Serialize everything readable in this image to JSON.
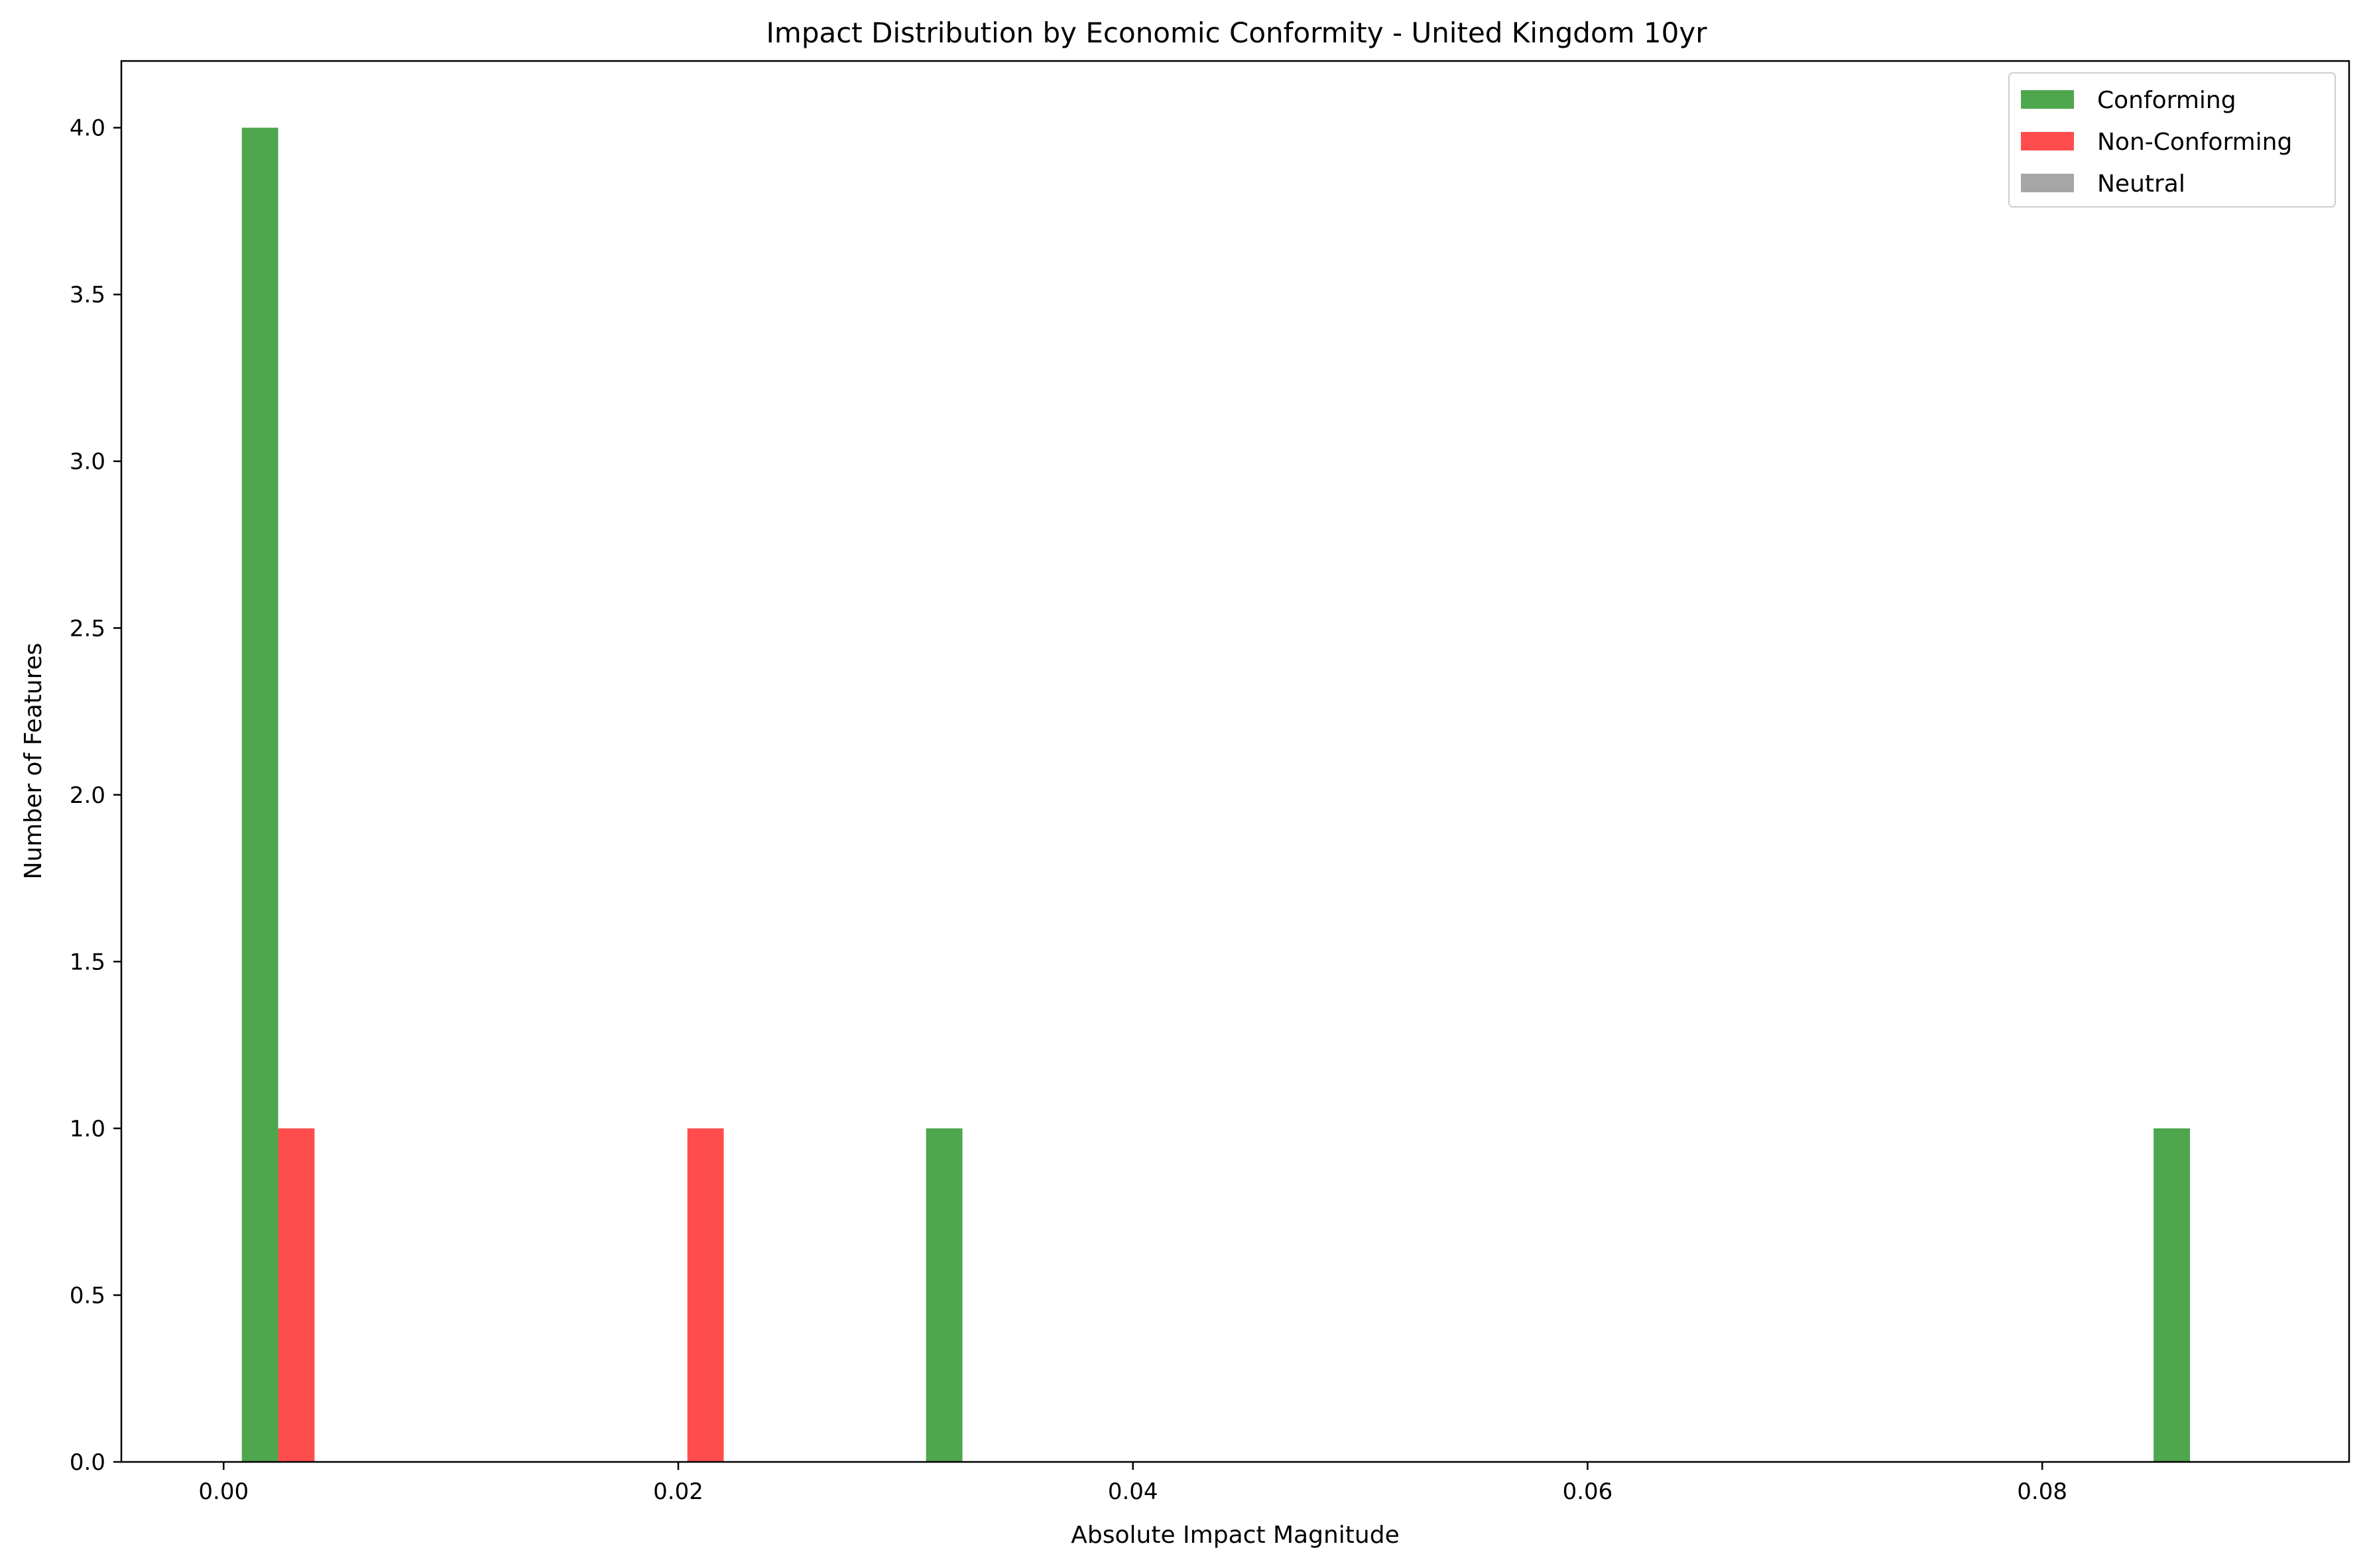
{
  "chart_data": {
    "type": "bar",
    "title": "Impact Distribution by Economic Conformity - United Kingdom 10yr",
    "xlabel": "Absolute Impact Magnitude",
    "ylabel": "Number of Features",
    "xlim": [
      -0.0045,
      0.0935
    ],
    "ylim": [
      0,
      4.2
    ],
    "xticks": [
      "0.00",
      "0.02",
      "0.04",
      "0.06",
      "0.08"
    ],
    "yticks": [
      "0.0",
      "0.5",
      "1.0",
      "1.5",
      "2.0",
      "2.5",
      "3.0",
      "3.5",
      "4.0"
    ],
    "grid": false,
    "legend_position": "top-right",
    "series": [
      {
        "name": "Conforming",
        "color": "#4ea64d",
        "bars": [
          {
            "x0": 0.0008,
            "x1": 0.0024,
            "count": 4
          },
          {
            "x0": 0.0309,
            "x1": 0.0325,
            "count": 1
          },
          {
            "x0": 0.0849,
            "x1": 0.0865,
            "count": 1
          }
        ]
      },
      {
        "name": "Non-Conforming",
        "color": "#ff4d4d",
        "bars": [
          {
            "x0": 0.0024,
            "x1": 0.004,
            "count": 1
          },
          {
            "x0": 0.0204,
            "x1": 0.022,
            "count": 1
          }
        ]
      },
      {
        "name": "Neutral",
        "color": "#a6a6a6",
        "bars": []
      }
    ]
  }
}
